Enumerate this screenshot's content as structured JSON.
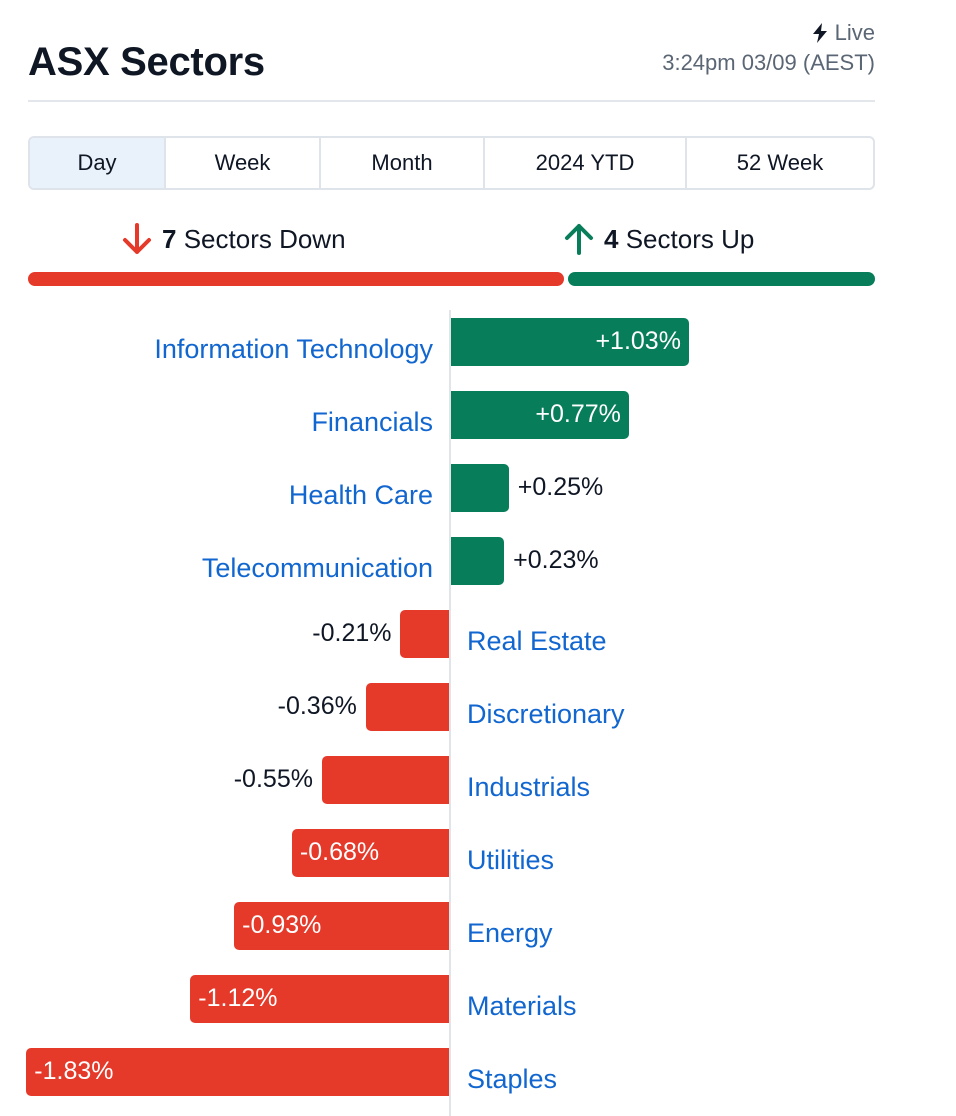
{
  "header": {
    "title": "ASX Sectors",
    "live_label": "Live",
    "timestamp": "3:24pm 03/09 (AEST)"
  },
  "tabs": [
    {
      "label": "Day",
      "active": true
    },
    {
      "label": "Week",
      "active": false
    },
    {
      "label": "Month",
      "active": false
    },
    {
      "label": "2024 YTD",
      "active": false
    },
    {
      "label": "52 Week",
      "active": false
    }
  ],
  "summary": {
    "down_count": "7",
    "down_label": "Sectors Down",
    "up_count": "4",
    "up_label": "Sectors Up"
  },
  "colors": {
    "up": "#087d5a",
    "down": "#e5392a",
    "link": "#1166cf"
  },
  "icons": {
    "live": "lightning-icon",
    "down": "arrow-down-icon",
    "up": "arrow-up-icon"
  },
  "chart_data": {
    "type": "bar",
    "orientation": "horizontal",
    "categories": [
      "Information Technology",
      "Financials",
      "Health Care",
      "Telecommunication",
      "Real Estate",
      "Discretionary",
      "Industrials",
      "Utilities",
      "Energy",
      "Materials",
      "Staples"
    ],
    "values": [
      1.03,
      0.77,
      0.25,
      0.23,
      -0.21,
      -0.36,
      -0.55,
      -0.68,
      -0.93,
      -1.12,
      -1.83
    ],
    "value_labels": [
      "+1.03%",
      "+0.77%",
      "+0.25%",
      "+0.23%",
      "-0.21%",
      "-0.36%",
      "-0.55%",
      "-0.68%",
      "-0.93%",
      "-1.12%",
      "-1.83%"
    ],
    "unit": "%"
  }
}
